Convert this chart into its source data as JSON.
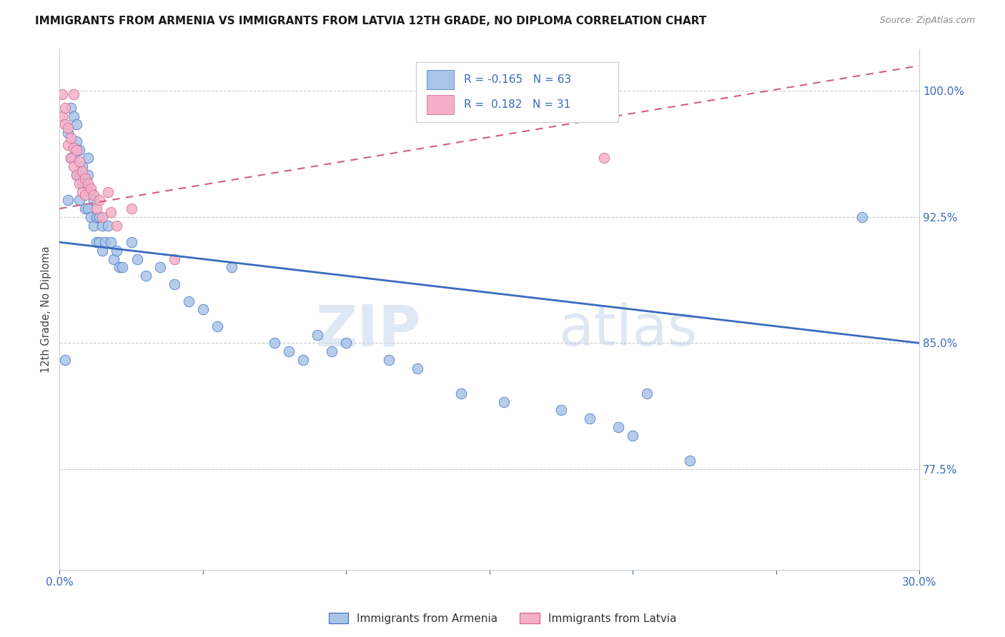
{
  "title": "IMMIGRANTS FROM ARMENIA VS IMMIGRANTS FROM LATVIA 12TH GRADE, NO DIPLOMA CORRELATION CHART",
  "source": "Source: ZipAtlas.com",
  "ylabel": "12th Grade, No Diploma",
  "xmin": 0.0,
  "xmax": 0.3,
  "ymin": 0.715,
  "ymax": 1.025,
  "yticks": [
    0.775,
    0.85,
    0.925,
    1.0
  ],
  "ytick_labels": [
    "77.5%",
    "85.0%",
    "92.5%",
    "100.0%"
  ],
  "xticks": [
    0.0,
    0.05,
    0.1,
    0.15,
    0.2,
    0.25,
    0.3
  ],
  "xtick_labels": [
    "0.0%",
    "",
    "",
    "",
    "",
    "",
    "30.0%"
  ],
  "color_armenia": "#aac4e8",
  "color_latvia": "#f4b0c8",
  "line_color_armenia": "#3a6abf",
  "line_color_latvia": "#d06080",
  "watermark_zip": "ZIP",
  "watermark_atlas": "atlas",
  "armenia_x": [
    0.002,
    0.003,
    0.003,
    0.004,
    0.004,
    0.005,
    0.005,
    0.006,
    0.006,
    0.006,
    0.007,
    0.007,
    0.007,
    0.008,
    0.008,
    0.009,
    0.009,
    0.01,
    0.01,
    0.01,
    0.011,
    0.011,
    0.012,
    0.012,
    0.013,
    0.013,
    0.014,
    0.014,
    0.015,
    0.015,
    0.016,
    0.017,
    0.018,
    0.019,
    0.02,
    0.021,
    0.022,
    0.025,
    0.027,
    0.03,
    0.035,
    0.04,
    0.045,
    0.05,
    0.055,
    0.06,
    0.075,
    0.08,
    0.085,
    0.09,
    0.095,
    0.1,
    0.115,
    0.125,
    0.14,
    0.155,
    0.175,
    0.185,
    0.195,
    0.2,
    0.205,
    0.22,
    0.28
  ],
  "armenia_y": [
    0.84,
    0.975,
    0.935,
    0.99,
    0.96,
    0.985,
    0.96,
    0.98,
    0.97,
    0.95,
    0.965,
    0.95,
    0.935,
    0.955,
    0.945,
    0.945,
    0.93,
    0.96,
    0.95,
    0.93,
    0.94,
    0.925,
    0.935,
    0.92,
    0.925,
    0.91,
    0.925,
    0.91,
    0.92,
    0.905,
    0.91,
    0.92,
    0.91,
    0.9,
    0.905,
    0.895,
    0.895,
    0.91,
    0.9,
    0.89,
    0.895,
    0.885,
    0.875,
    0.87,
    0.86,
    0.895,
    0.85,
    0.845,
    0.84,
    0.855,
    0.845,
    0.85,
    0.84,
    0.835,
    0.82,
    0.815,
    0.81,
    0.805,
    0.8,
    0.795,
    0.82,
    0.78,
    0.925
  ],
  "latvia_x": [
    0.001,
    0.001,
    0.002,
    0.002,
    0.003,
    0.003,
    0.004,
    0.004,
    0.005,
    0.005,
    0.005,
    0.006,
    0.006,
    0.007,
    0.007,
    0.008,
    0.008,
    0.009,
    0.009,
    0.01,
    0.011,
    0.012,
    0.013,
    0.014,
    0.015,
    0.017,
    0.018,
    0.02,
    0.025,
    0.04,
    0.19
  ],
  "latvia_y": [
    0.985,
    0.998,
    0.99,
    0.98,
    0.978,
    0.968,
    0.972,
    0.96,
    0.966,
    0.955,
    0.998,
    0.95,
    0.965,
    0.945,
    0.958,
    0.94,
    0.952,
    0.938,
    0.948,
    0.945,
    0.942,
    0.938,
    0.93,
    0.935,
    0.925,
    0.94,
    0.928,
    0.92,
    0.93,
    0.9,
    0.96
  ],
  "arm_line_x0": 0.0,
  "arm_line_x1": 0.3,
  "arm_line_y0": 0.91,
  "arm_line_y1": 0.85,
  "lat_line_x0": 0.0,
  "lat_line_x1": 0.3,
  "lat_line_y0": 0.93,
  "lat_line_y1": 1.015
}
